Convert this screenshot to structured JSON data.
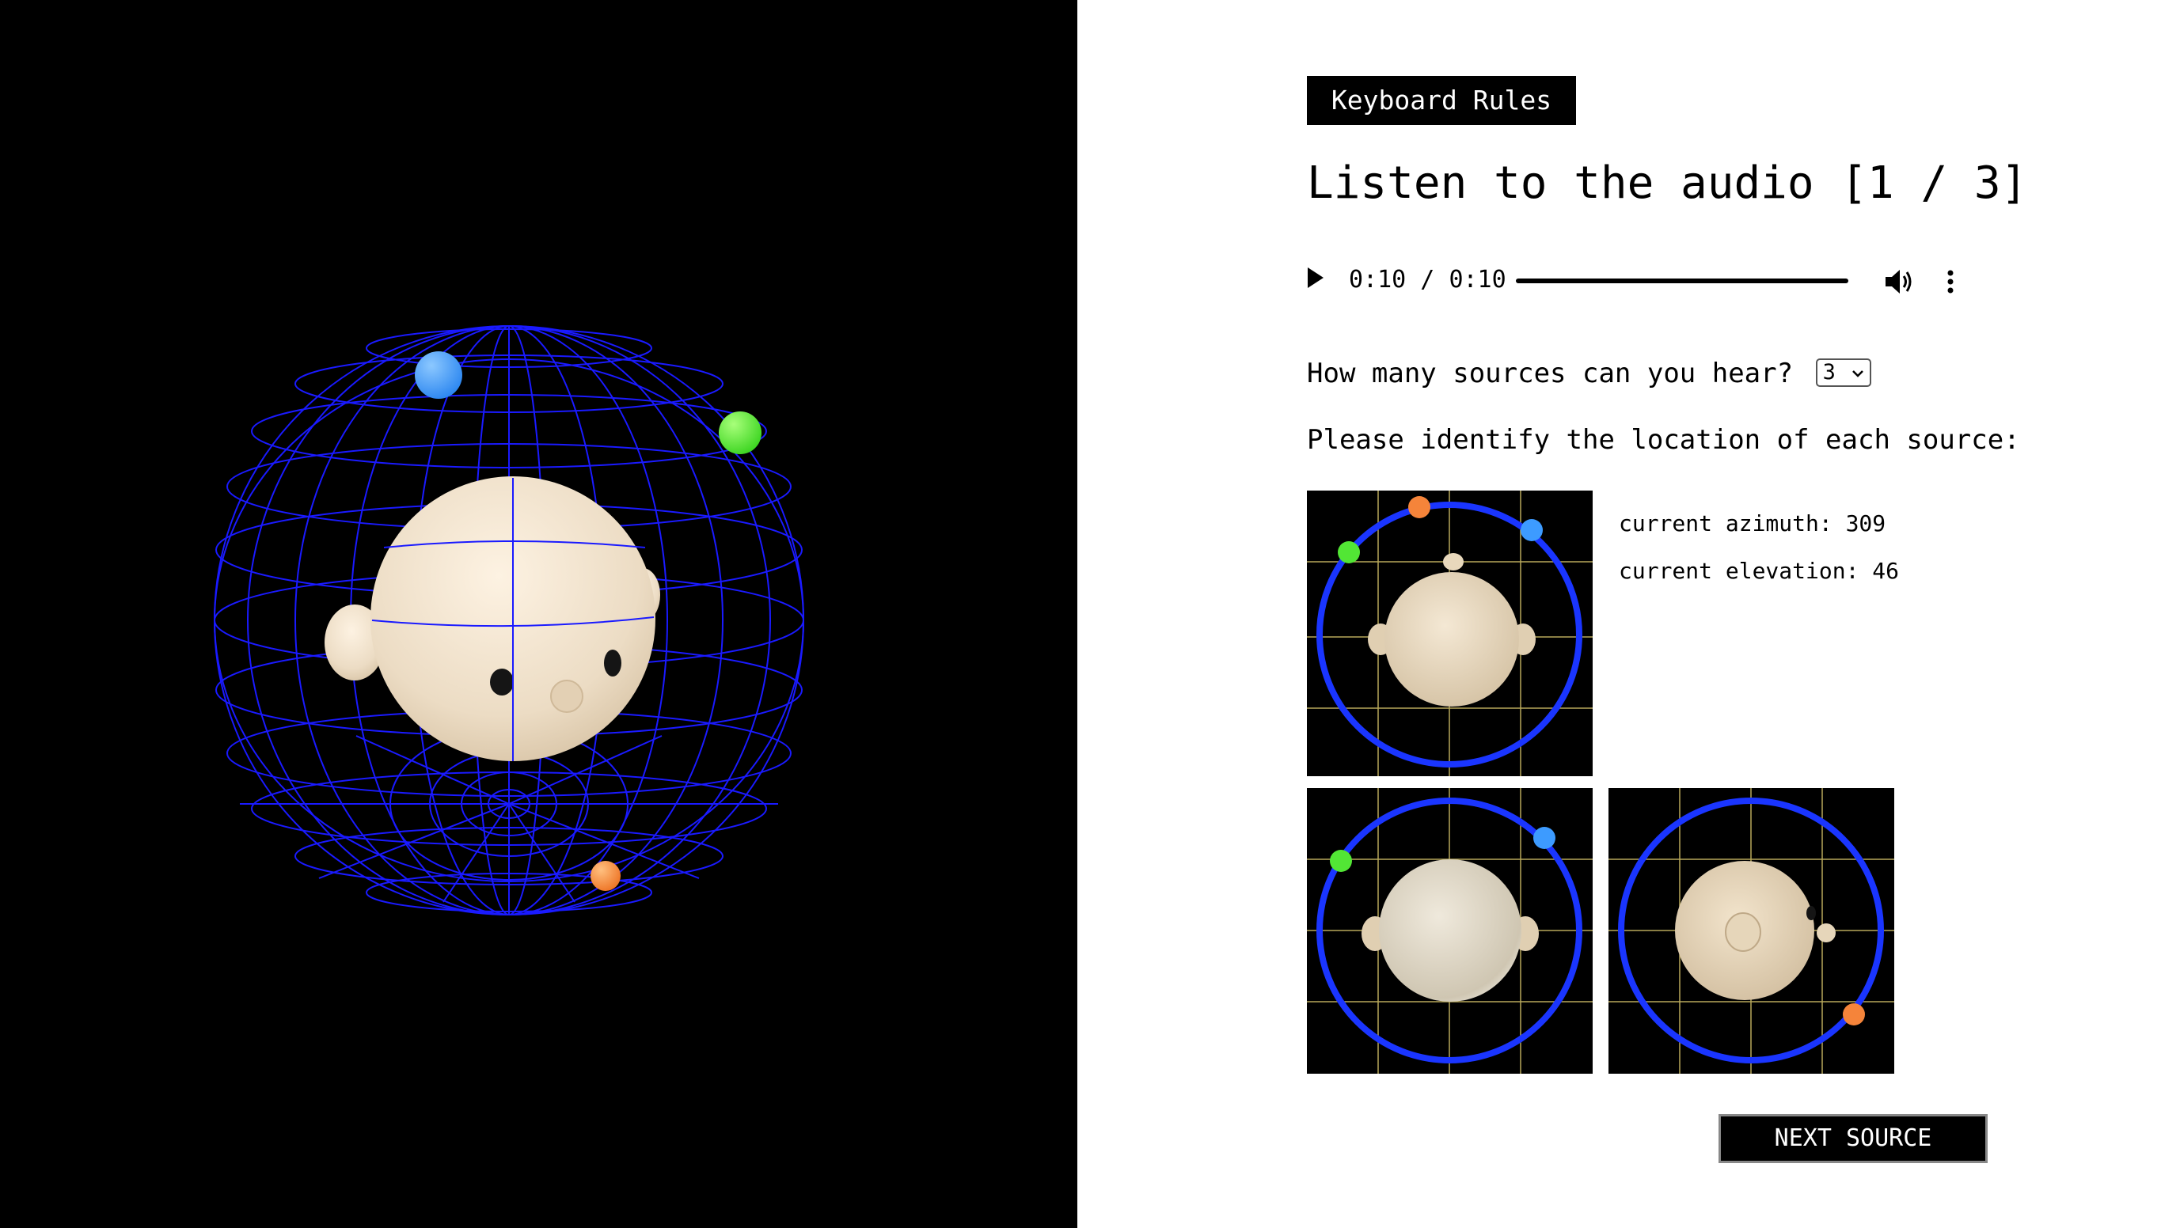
{
  "keyboard_rules_label": "Keyboard Rules",
  "title": "Listen to the audio [1 / 3]",
  "audio": {
    "current_time": "0:10",
    "separator": " / ",
    "duration": "0:10",
    "progress": 1.0
  },
  "sources_question": "How many sources can you hear?",
  "sources_count_selected": "3",
  "identify_prompt": "Please identify the location of each source:",
  "azimuth_label": "current azimuth:",
  "azimuth_value": "309",
  "elevation_label": "current elevation:",
  "elevation_value": "46",
  "next_button_label": "NEXT SOURCE",
  "colors": {
    "source_blue": "#3d9bff",
    "source_green": "#52e635",
    "source_orange": "#f5843a",
    "wireframe": "#1a1aff",
    "orbit_ring": "#1a35ff",
    "grid_lines": "#b8a85a",
    "head_skin": "#ecdcc4"
  },
  "icons": [
    "play-icon",
    "volume-icon",
    "more-options-icon",
    "chevron-down-icon"
  ]
}
